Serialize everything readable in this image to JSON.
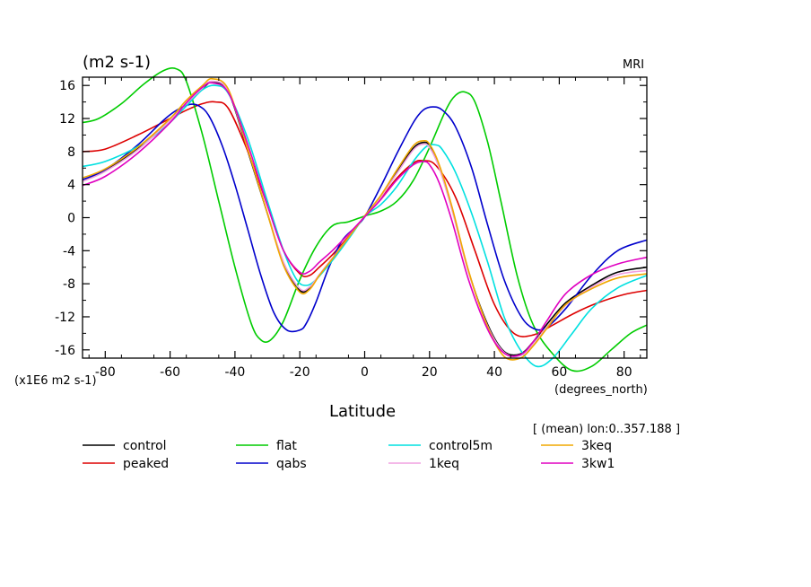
{
  "chart_data": {
    "type": "line",
    "title": "",
    "units_label": "(m2 s-1)",
    "source_label": "MRI",
    "scale_label": "(x1E6 m2 s-1)",
    "x_units_label": "(degrees_north)",
    "xlabel": "Latitude",
    "mean_note": "[ (mean) lon:0..357.188 ]",
    "xlim": [
      -87,
      87
    ],
    "ylim": [
      -17,
      17
    ],
    "xticks": [
      -80,
      -60,
      -40,
      -20,
      0,
      20,
      40,
      60,
      80
    ],
    "xtick_labels": [
      "-80",
      "-60",
      "-40",
      "-20",
      "0",
      "20",
      "40",
      "60",
      "80"
    ],
    "yticks": [
      16,
      12,
      8,
      4,
      0,
      -4,
      -8,
      -12,
      -16
    ],
    "ytick_labels": [
      "16",
      "12",
      "8",
      "4",
      "0",
      "-4",
      "-8",
      "-12",
      "-16"
    ],
    "grid": false,
    "legend_position": "bottom",
    "series": [
      {
        "name": "control",
        "color": "#000000",
        "x": [
          -87,
          -80,
          -70,
          -60,
          -55,
          -50,
          -47,
          -42,
          -36,
          -30,
          -25,
          -20,
          -17,
          -14,
          -10,
          -5,
          0,
          5,
          10,
          15,
          18,
          20,
          23,
          27,
          32,
          38,
          43,
          48,
          52,
          56,
          62,
          70,
          78,
          87
        ],
        "y": [
          4.5,
          5.7,
          8.4,
          11.9,
          13.8,
          15.6,
          16.4,
          15.2,
          8.0,
          0.5,
          -5.5,
          -8.8,
          -8.5,
          -7.0,
          -5.0,
          -2.5,
          0.2,
          2.6,
          5.6,
          8.4,
          9.1,
          8.7,
          6.2,
          1.0,
          -6.5,
          -13.0,
          -16.2,
          -16.5,
          -15.0,
          -13.0,
          -10.3,
          -8.2,
          -6.6,
          -6.0
        ]
      },
      {
        "name": "peaked",
        "color": "#dd0000",
        "x": [
          -87,
          -80,
          -70,
          -60,
          -55,
          -50,
          -46,
          -42,
          -36,
          -30,
          -25,
          -20,
          -17,
          -14,
          -10,
          -5,
          0,
          5,
          10,
          15,
          18,
          22,
          28,
          34,
          40,
          46,
          52,
          58,
          65,
          72,
          80,
          87
        ],
        "y": [
          8.0,
          8.3,
          10.0,
          12.0,
          13.0,
          13.8,
          14.0,
          13.2,
          8.0,
          1.5,
          -4.0,
          -6.8,
          -7.0,
          -6.0,
          -4.5,
          -2.3,
          0.1,
          2.3,
          4.8,
          6.6,
          6.9,
          6.3,
          2.5,
          -4.0,
          -10.5,
          -14.0,
          -14.2,
          -13.0,
          -11.5,
          -10.3,
          -9.3,
          -8.8
        ]
      },
      {
        "name": "flat",
        "color": "#00cc00",
        "x": [
          -87,
          -82,
          -75,
          -68,
          -62,
          -58,
          -55,
          -50,
          -45,
          -40,
          -35,
          -32,
          -29,
          -25,
          -20,
          -15,
          -10,
          -5,
          0,
          5,
          10,
          15,
          20,
          25,
          28,
          31,
          34,
          38,
          42,
          47,
          52,
          58,
          64,
          70,
          76,
          82,
          87
        ],
        "y": [
          11.5,
          12.0,
          13.8,
          16.2,
          17.8,
          18.0,
          16.5,
          10.0,
          2.0,
          -6.0,
          -12.8,
          -14.8,
          -14.8,
          -12.5,
          -7.5,
          -3.5,
          -1.0,
          -0.5,
          0.2,
          0.8,
          2.0,
          4.5,
          8.5,
          13.0,
          14.8,
          15.2,
          14.0,
          9.0,
          2.0,
          -7.0,
          -13.0,
          -16.5,
          -18.5,
          -18.0,
          -16.0,
          -14.0,
          -13.0
        ]
      },
      {
        "name": "qabs",
        "color": "#0000cc",
        "x": [
          -87,
          -80,
          -70,
          -62,
          -58,
          -54,
          -51,
          -48,
          -44,
          -40,
          -36,
          -32,
          -28,
          -24,
          -20,
          -18,
          -15,
          -11,
          -7,
          -3,
          0,
          5,
          10,
          15,
          18,
          21,
          24,
          28,
          33,
          38,
          43,
          48,
          52,
          56,
          62,
          70,
          78,
          87
        ],
        "y": [
          4.6,
          5.8,
          8.8,
          11.8,
          13.0,
          13.7,
          13.5,
          12.3,
          8.8,
          4.0,
          -1.5,
          -7.0,
          -11.5,
          -13.6,
          -13.6,
          -12.8,
          -10.2,
          -6.0,
          -2.8,
          -1.2,
          0.1,
          3.8,
          7.8,
          11.5,
          13.0,
          13.4,
          13.0,
          11.0,
          6.0,
          -1.0,
          -7.5,
          -11.8,
          -13.4,
          -13.3,
          -11.0,
          -7.0,
          -4.0,
          -2.7
        ]
      },
      {
        "name": "control5m",
        "color": "#00e0e0",
        "x": [
          -87,
          -80,
          -70,
          -62,
          -55,
          -50,
          -46,
          -42,
          -36,
          -30,
          -25,
          -21,
          -18,
          -15,
          -10,
          -5,
          0,
          5,
          10,
          15,
          19,
          22,
          24,
          28,
          33,
          38,
          43,
          48,
          53,
          58,
          64,
          70,
          78,
          87
        ],
        "y": [
          6.2,
          6.8,
          8.6,
          10.8,
          13.5,
          15.5,
          16.0,
          15.0,
          9.5,
          2.0,
          -4.0,
          -7.5,
          -8.2,
          -7.5,
          -5.2,
          -2.6,
          0.1,
          1.6,
          3.8,
          6.8,
          8.6,
          8.8,
          8.2,
          5.5,
          0.5,
          -5.5,
          -12.0,
          -16.0,
          -18.0,
          -17.0,
          -14.0,
          -11.0,
          -8.5,
          -7.0
        ]
      },
      {
        "name": "1keq",
        "color": "#f0a0e0",
        "x": [
          -87,
          -80,
          -70,
          -60,
          -55,
          -50,
          -47,
          -42,
          -36,
          -30,
          -25,
          -20,
          -17,
          -14,
          -10,
          -5,
          0,
          5,
          10,
          15,
          18,
          20,
          23,
          27,
          32,
          38,
          43,
          48,
          52,
          56,
          62,
          70,
          78,
          87
        ],
        "y": [
          4.4,
          5.6,
          8.2,
          11.8,
          13.8,
          15.7,
          16.5,
          15.3,
          8.2,
          0.6,
          -5.4,
          -8.6,
          -8.4,
          -6.9,
          -4.9,
          -2.4,
          0.2,
          2.5,
          5.4,
          8.2,
          8.9,
          8.5,
          6.0,
          0.8,
          -6.6,
          -13.2,
          -16.3,
          -16.7,
          -15.3,
          -13.3,
          -10.6,
          -8.4,
          -6.9,
          -6.4
        ]
      },
      {
        "name": "3keq",
        "color": "#f0a800",
        "x": [
          -87,
          -80,
          -70,
          -60,
          -55,
          -50,
          -47,
          -42,
          -36,
          -30,
          -25,
          -20,
          -17,
          -14,
          -10,
          -5,
          0,
          5,
          10,
          15,
          18,
          20,
          23,
          27,
          32,
          38,
          43,
          48,
          52,
          56,
          62,
          70,
          78,
          87
        ],
        "y": [
          4.8,
          5.9,
          8.5,
          12.0,
          14.2,
          16.0,
          16.8,
          15.5,
          8.2,
          0.5,
          -5.8,
          -9.0,
          -8.7,
          -7.0,
          -5.0,
          -2.4,
          0.2,
          2.7,
          5.8,
          8.7,
          9.3,
          8.9,
          6.4,
          1.2,
          -6.4,
          -13.3,
          -16.8,
          -17.0,
          -15.5,
          -13.5,
          -10.5,
          -8.6,
          -7.3,
          -6.8
        ]
      },
      {
        "name": "3kw1",
        "color": "#e000c0",
        "x": [
          -87,
          -80,
          -70,
          -60,
          -55,
          -50,
          -47,
          -42,
          -36,
          -30,
          -25,
          -20,
          -17,
          -14,
          -10,
          -5,
          0,
          5,
          10,
          15,
          18,
          20,
          23,
          27,
          32,
          38,
          43,
          48,
          52,
          56,
          62,
          70,
          78,
          87
        ],
        "y": [
          3.9,
          5.0,
          7.8,
          11.5,
          13.9,
          15.8,
          16.3,
          15.1,
          8.8,
          1.5,
          -4.0,
          -6.6,
          -6.5,
          -5.4,
          -4.0,
          -2.0,
          0.1,
          2.2,
          4.6,
          6.4,
          6.8,
          6.4,
          4.2,
          -0.5,
          -7.5,
          -13.6,
          -16.4,
          -16.6,
          -15.0,
          -12.6,
          -9.2,
          -6.9,
          -5.6,
          -4.8
        ]
      }
    ]
  }
}
